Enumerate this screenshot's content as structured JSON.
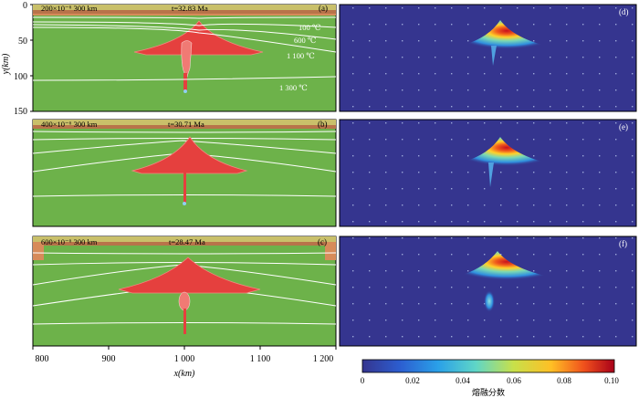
{
  "y_axis": {
    "label": "y(km)",
    "ticks": [
      "0",
      "50",
      "100",
      "150"
    ]
  },
  "x_axis": {
    "label": "x(km)",
    "ticks": [
      "800",
      "900",
      "1 000",
      "1 100",
      "1 200"
    ]
  },
  "panels_left": [
    {
      "letter": "(a)",
      "header": "200×10⁻⁶  300 km",
      "time": "t=32.83 Ma"
    },
    {
      "letter": "(b)",
      "header": "400×10⁻⁶  300 km",
      "time": "t=30.71 Ma"
    },
    {
      "letter": "(c)",
      "header": "600×10⁻⁶  300 km",
      "time": "t=28.47 Ma"
    }
  ],
  "panels_right": [
    {
      "letter": "(d)"
    },
    {
      "letter": "(e)"
    },
    {
      "letter": "(f)"
    }
  ],
  "isotherm_labels": [
    "100 ℃",
    "600 ℃",
    "1 100 ℃",
    "1 300 ℃"
  ],
  "colorbar": {
    "ticks": [
      "0",
      "0.02",
      "0.04",
      "0.06",
      "0.08",
      "0.10"
    ],
    "label": "熔融分数",
    "range": [
      0,
      0.1
    ]
  },
  "colors": {
    "mantle_green": "#6db24a",
    "melt_red": "#e5403e",
    "crust_brown": "#b8734a",
    "field_blue": "#35358f"
  }
}
